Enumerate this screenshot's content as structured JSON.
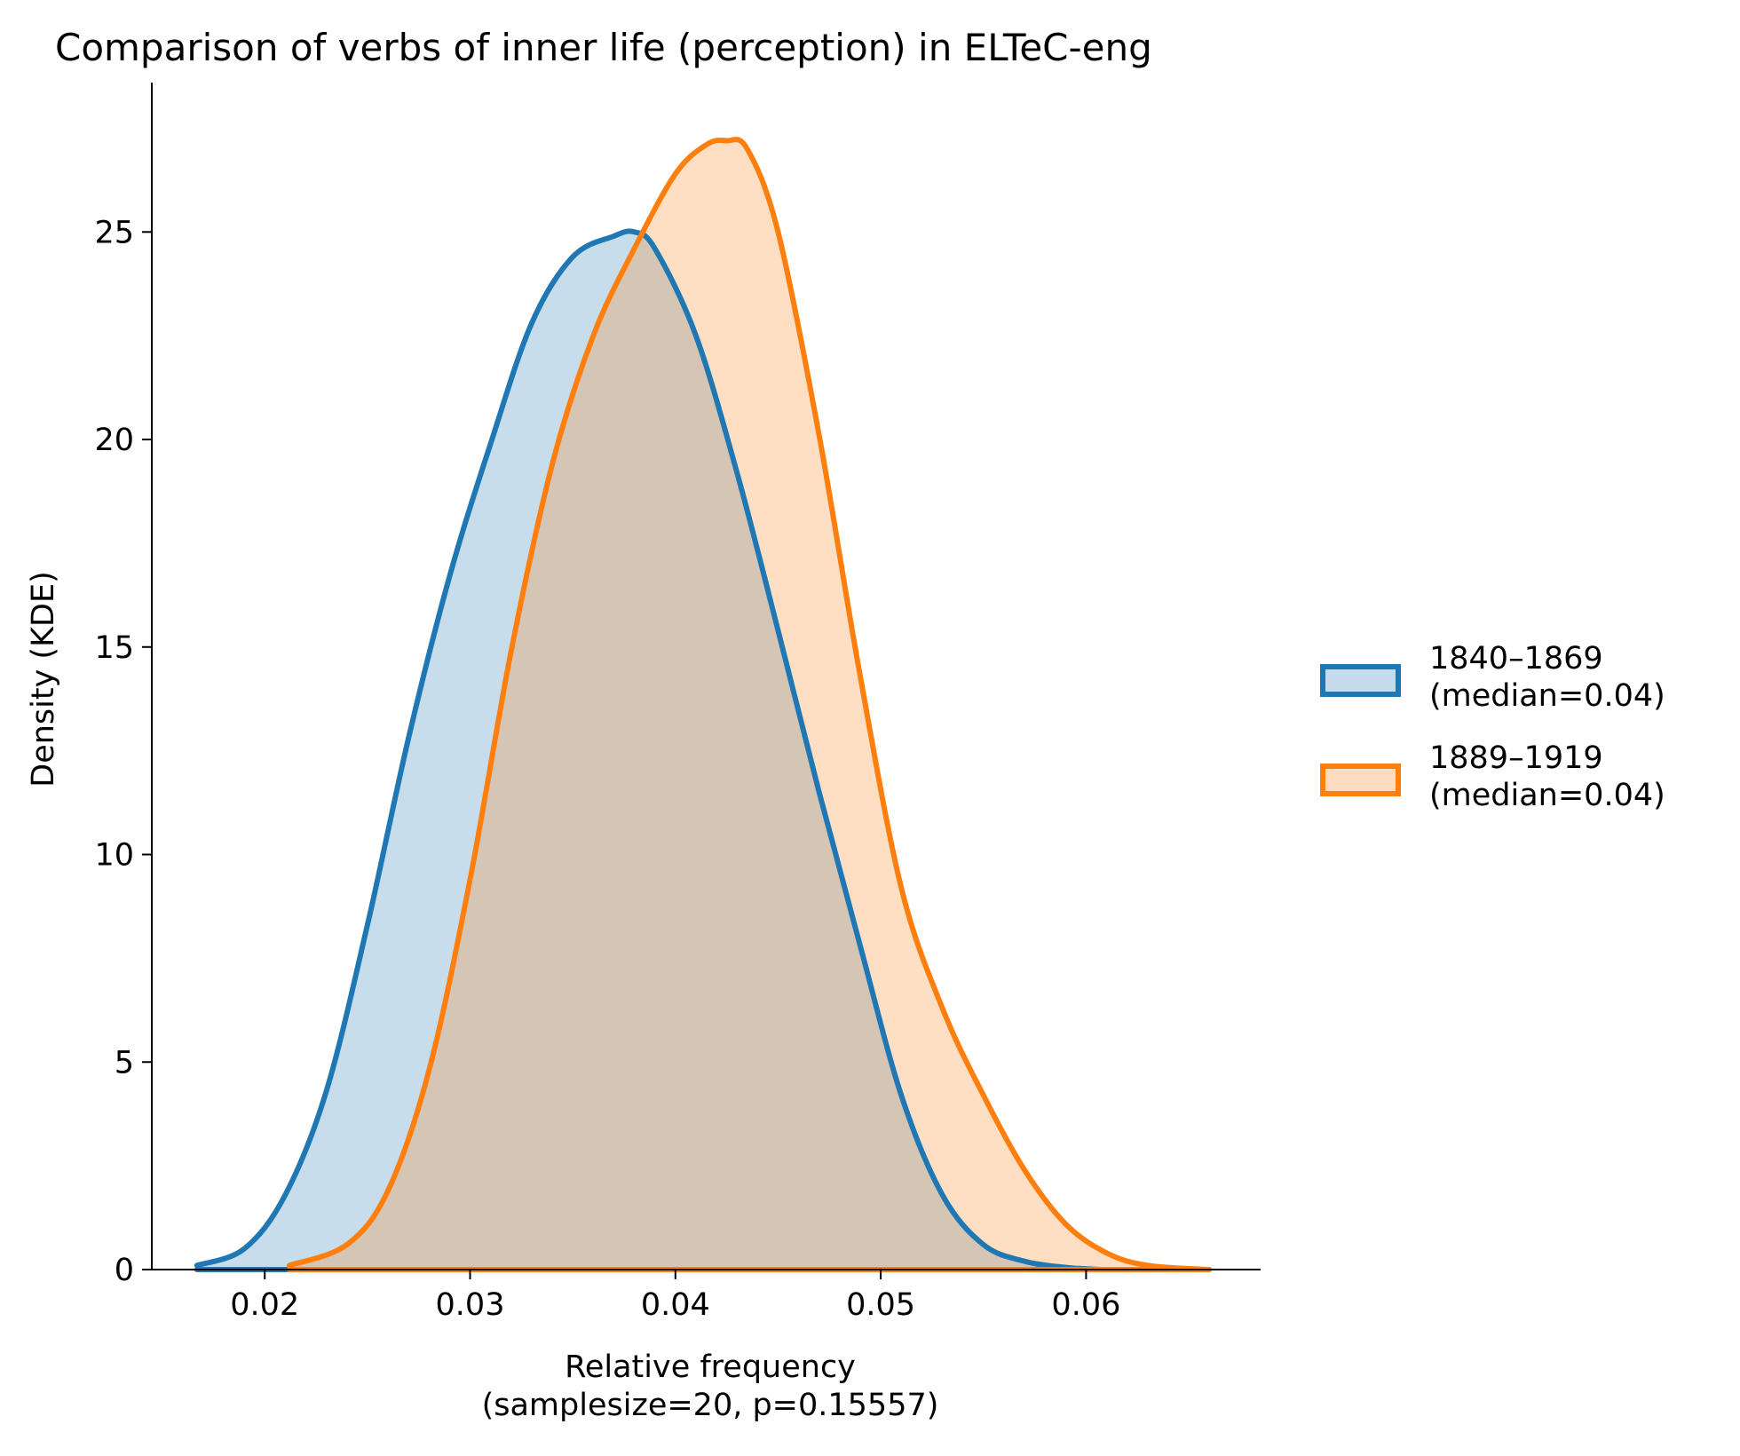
{
  "chart_data": {
    "type": "area",
    "title": "Comparison of verbs of inner life (perception) in ELTeC-eng",
    "xlabel_line1": "Relative frequency",
    "xlabel_line2": "(samplesize=20, p=0.15557)",
    "ylabel": "Density (KDE)",
    "xlim": [
      0.0145,
      0.0685
    ],
    "ylim": [
      0,
      28.6
    ],
    "xticks": [
      0.02,
      0.03,
      0.04,
      0.05,
      0.06
    ],
    "xtick_labels": [
      "0.02",
      "0.03",
      "0.04",
      "0.05",
      "0.06"
    ],
    "yticks": [
      0,
      5,
      10,
      15,
      20,
      25
    ],
    "ytick_labels": [
      "0",
      "5",
      "10",
      "15",
      "20",
      "25"
    ],
    "grid": false,
    "legend_position": "right",
    "series": [
      {
        "name": "1840–1869",
        "name_line2": "(median=0.04)",
        "color": "#1f77b4",
        "fill": "#c5daea",
        "x": [
          0.0167,
          0.019,
          0.021,
          0.023,
          0.025,
          0.027,
          0.029,
          0.031,
          0.033,
          0.035,
          0.037,
          0.038,
          0.039,
          0.041,
          0.043,
          0.045,
          0.047,
          0.049,
          0.051,
          0.053,
          0.055,
          0.057,
          0.059,
          0.0607
        ],
        "y": [
          0.1,
          0.5,
          1.8,
          4.3,
          8.3,
          12.8,
          16.7,
          19.9,
          22.8,
          24.4,
          24.9,
          25.0,
          24.6,
          22.5,
          19.2,
          15.4,
          11.5,
          7.8,
          4.2,
          1.8,
          0.6,
          0.2,
          0.05,
          0.0
        ]
      },
      {
        "name": "1889–1919",
        "name_line2": "(median=0.04)",
        "color": "#ff7f0e",
        "fill": "#fddcc0",
        "x": [
          0.0212,
          0.024,
          0.026,
          0.028,
          0.03,
          0.032,
          0.034,
          0.036,
          0.038,
          0.04,
          0.0415,
          0.0425,
          0.0435,
          0.045,
          0.047,
          0.049,
          0.051,
          0.053,
          0.055,
          0.057,
          0.059,
          0.061,
          0.063,
          0.066
        ],
        "y": [
          0.1,
          0.6,
          1.9,
          4.8,
          9.4,
          14.9,
          19.4,
          22.5,
          24.6,
          26.4,
          27.1,
          27.2,
          27.0,
          25.0,
          20.1,
          14.3,
          9.2,
          6.3,
          4.2,
          2.4,
          1.1,
          0.4,
          0.1,
          0.0
        ]
      }
    ]
  }
}
